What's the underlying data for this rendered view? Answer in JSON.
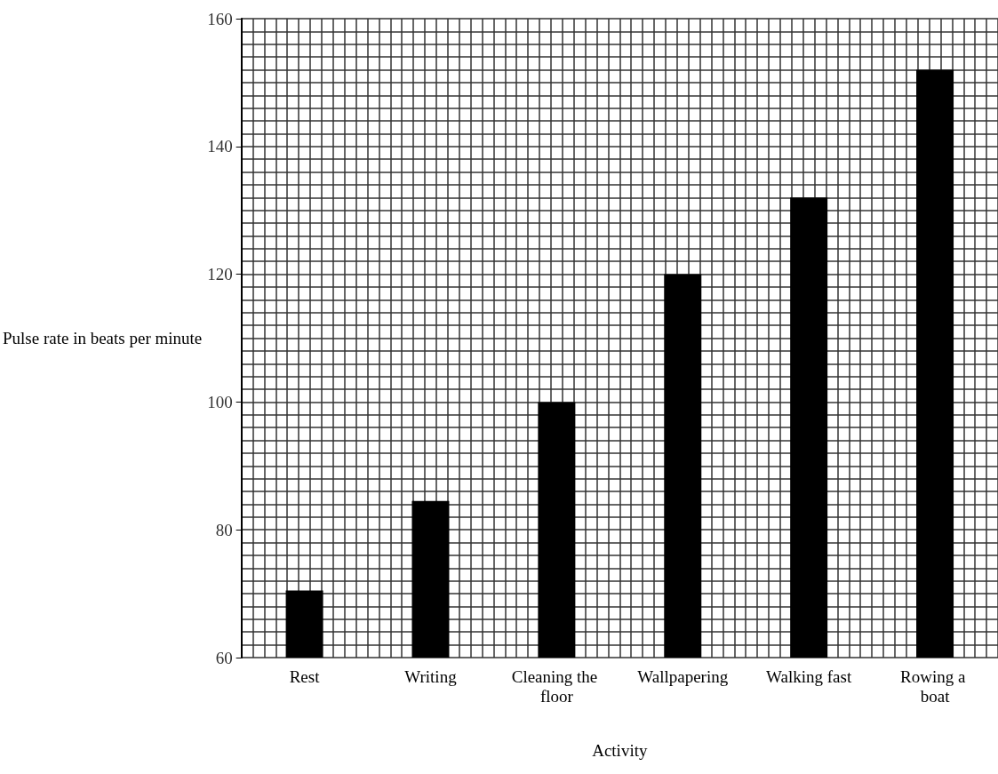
{
  "chart_data": {
    "type": "bar",
    "xlabel": "Activity",
    "ylabel": "Pulse rate in beats per minute",
    "categories": [
      "Rest",
      "Writing",
      "Cleaning the floor",
      "Wallpapering",
      "Walking fast",
      "Rowing a boat"
    ],
    "values": [
      70.5,
      84.5,
      100,
      120,
      132,
      152
    ],
    "color": "#000000",
    "ylim": [
      60,
      160
    ],
    "yticks": [
      60,
      80,
      100,
      120,
      140,
      160
    ],
    "grid": true
  }
}
